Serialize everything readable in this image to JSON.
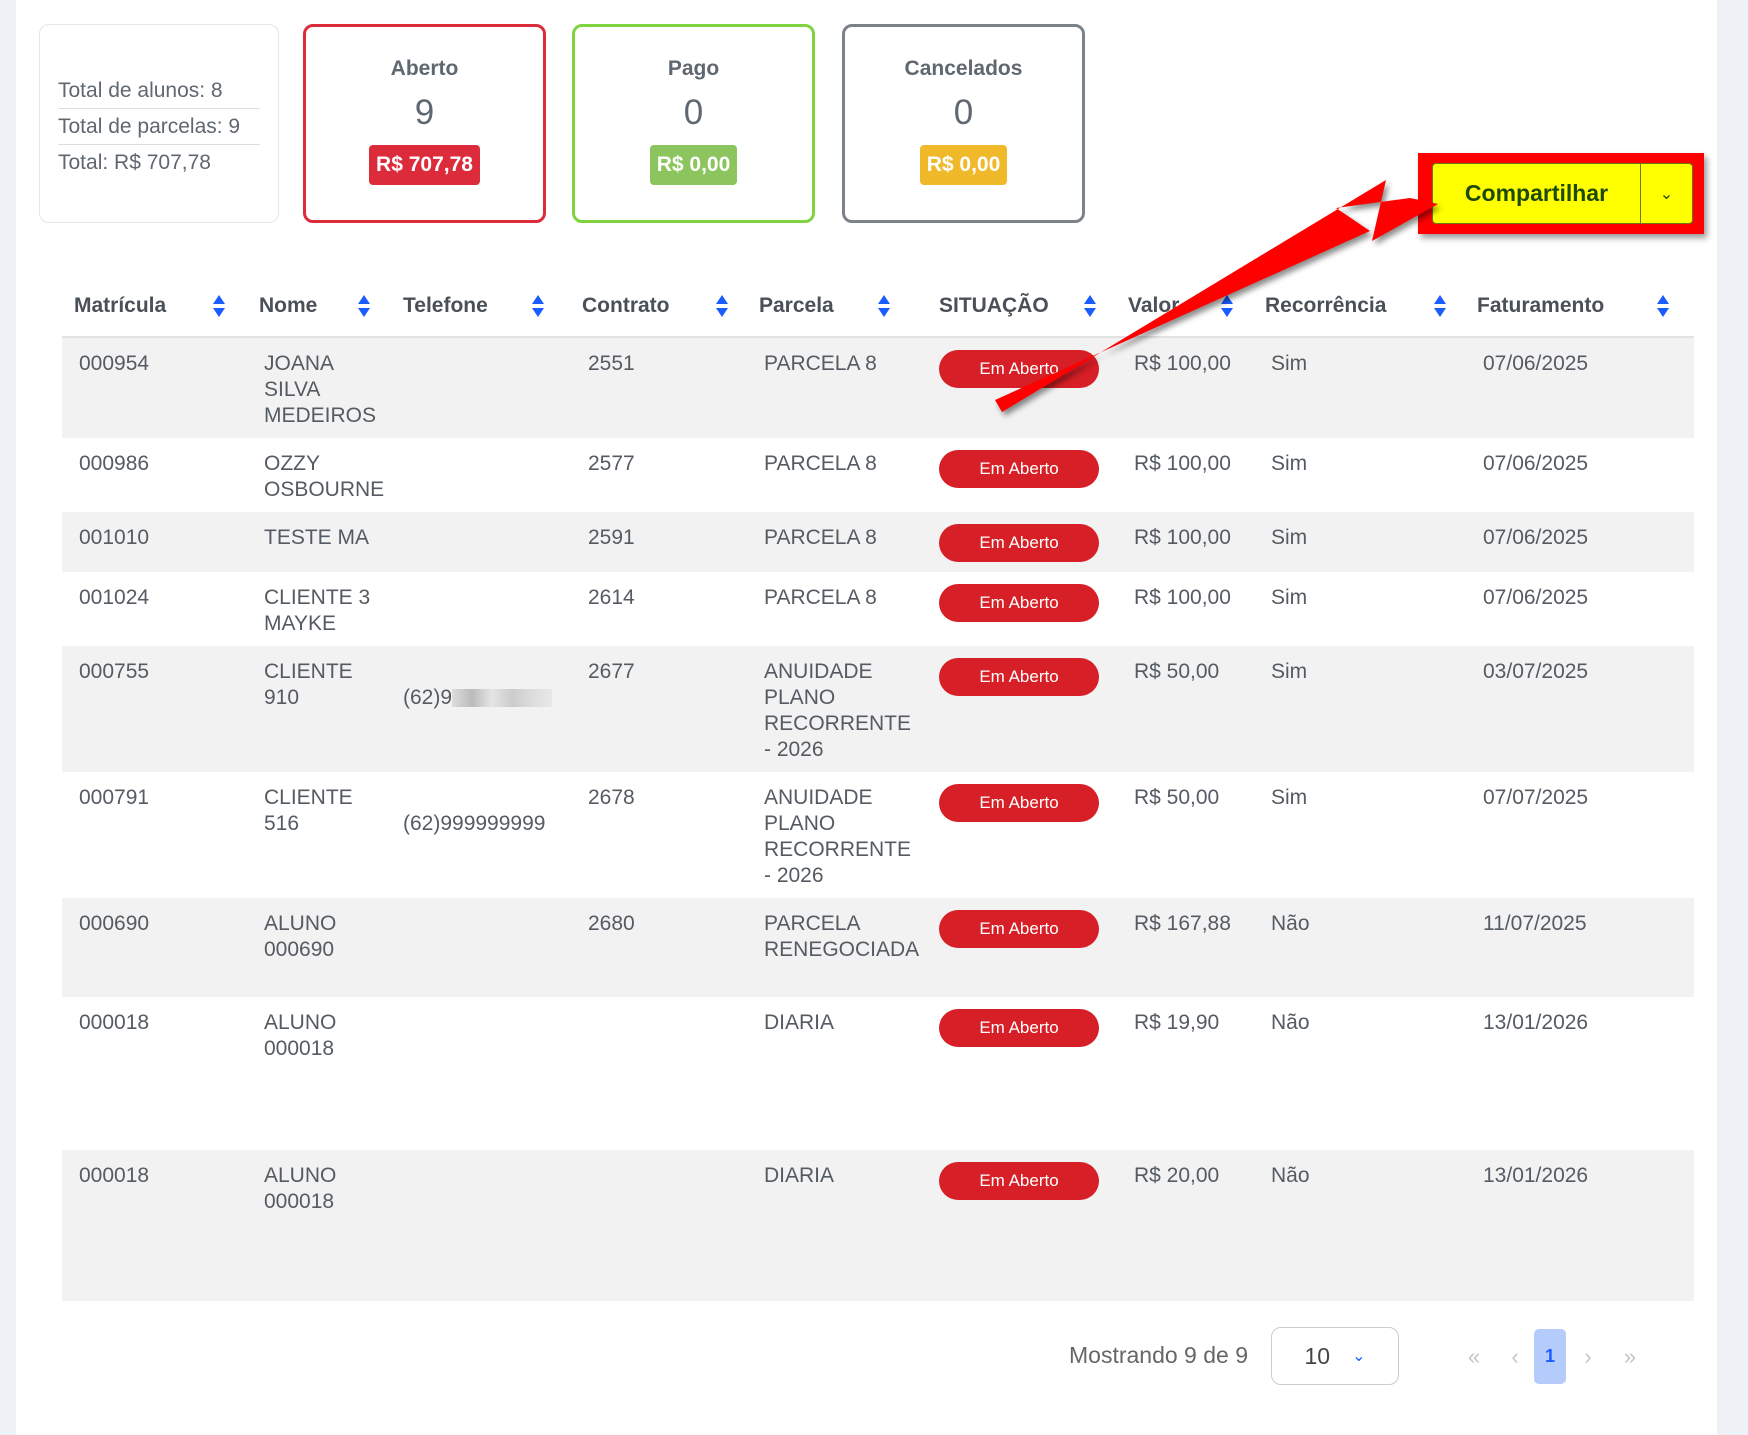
{
  "summary": {
    "students": "Total de alunos: 8",
    "installments": "Total de parcelas: 9",
    "total": "Total: R$ 707,78"
  },
  "cards": [
    {
      "title": "Aberto",
      "count": "9",
      "amount": "R$ 707,78",
      "color": "#dc2b3a",
      "badge": "#dc2b3a"
    },
    {
      "title": "Pago",
      "count": "0",
      "amount": "R$ 0,00",
      "color": "#7ed33f",
      "badge": "#8cc45e"
    },
    {
      "title": "Cancelados",
      "count": "0",
      "amount": "R$ 0,00",
      "color": "#7c8289",
      "badge": "#f0b92a"
    }
  ],
  "share": {
    "label": "Compartilhar",
    "highlight": "#ff0000",
    "button": "#ffff00"
  },
  "table": {
    "headers": [
      "Matrícula",
      "Nome",
      "Telefone",
      "Contrato",
      "Parcela",
      "SITUAÇÃO",
      "Valor",
      "Recorrência",
      "Faturamento"
    ],
    "rows": [
      {
        "matricula": "000954",
        "nome": "JOANA\nSILVA\nMEDEIROS",
        "telefone": "",
        "contrato": "2551",
        "parcela": "PARCELA 8",
        "situacao": "Em Aberto",
        "valor": "R$ 100,00",
        "recorrencia": "Sim",
        "faturamento": "07/06/2025"
      },
      {
        "matricula": "000986",
        "nome": "OZZY\nOSBOURNE",
        "telefone": "",
        "contrato": "2577",
        "parcela": "PARCELA 8",
        "situacao": "Em Aberto",
        "valor": "R$ 100,00",
        "recorrencia": "Sim",
        "faturamento": "07/06/2025"
      },
      {
        "matricula": "001010",
        "nome": "TESTE MA",
        "telefone": "",
        "contrato": "2591",
        "parcela": "PARCELA 8",
        "situacao": "Em Aberto",
        "valor": "R$ 100,00",
        "recorrencia": "Sim",
        "faturamento": "07/06/2025"
      },
      {
        "matricula": "001024",
        "nome": "CLIENTE 3\nMAYKE",
        "telefone": "",
        "contrato": "2614",
        "parcela": "PARCELA 8",
        "situacao": "Em Aberto",
        "valor": "R$ 100,00",
        "recorrencia": "Sim",
        "faturamento": "07/06/2025"
      },
      {
        "matricula": "000755",
        "nome": "CLIENTE\n910",
        "telefone": "(62)9",
        "telefone_blurred": true,
        "contrato": "2677",
        "parcela": "ANUIDADE\nPLANO\nRECORRENTE\n- 2026",
        "situacao": "Em Aberto",
        "valor": "R$ 50,00",
        "recorrencia": "Sim",
        "faturamento": "03/07/2025"
      },
      {
        "matricula": "000791",
        "nome": "CLIENTE\n516",
        "telefone": "(62)999999999",
        "contrato": "2678",
        "parcela": "ANUIDADE\nPLANO\nRECORRENTE\n- 2026",
        "situacao": "Em Aberto",
        "valor": "R$ 50,00",
        "recorrencia": "Sim",
        "faturamento": "07/07/2025"
      },
      {
        "matricula": "000690",
        "nome": "ALUNO\n000690",
        "telefone": "",
        "contrato": "2680",
        "parcela": "PARCELA\nRENEGOCIADA",
        "situacao": "Em Aberto",
        "valor": "R$ 167,88",
        "recorrencia": "Não",
        "faturamento": "11/07/2025"
      },
      {
        "matricula": "000018",
        "nome": "ALUNO\n000018",
        "telefone": "",
        "contrato": "",
        "parcela": "DIARIA",
        "situacao": "Em Aberto",
        "valor": "R$ 19,90",
        "recorrencia": "Não",
        "faturamento": "13/01/2026"
      },
      {
        "matricula": "000018",
        "nome": "ALUNO\n000018",
        "telefone": "",
        "contrato": "",
        "parcela": "DIARIA",
        "situacao": "Em Aberto",
        "valor": "R$ 20,00",
        "recorrencia": "Não",
        "faturamento": "13/01/2026"
      }
    ]
  },
  "footer": {
    "showing": "Mostrando 9 de 9",
    "page_size": "10",
    "current_page": "1",
    "first": "«",
    "prev": "‹",
    "next": "›",
    "last": "»"
  }
}
